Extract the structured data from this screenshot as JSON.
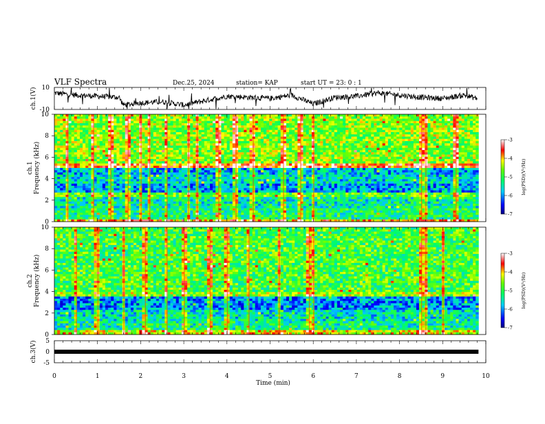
{
  "header": {
    "title": "VLF Spectra",
    "date": "Dec.25, 2024",
    "station": "station= KAP",
    "start": "start  UT =   23: 0  : 1"
  },
  "chart_data": [
    {
      "type": "line",
      "name": "ch1-waveform",
      "ylabel": "ch.1(V)",
      "ylim": [
        -10,
        10
      ],
      "ytick_labels": [
        "10",
        "-10"
      ],
      "xlim": [
        0,
        10
      ],
      "color": "#000000",
      "approx_x": [
        0.0,
        0.5,
        1.0,
        1.5,
        1.6,
        2.0,
        2.5,
        3.0,
        3.5,
        4.0,
        4.5,
        5.0,
        5.5,
        6.0,
        6.5,
        7.0,
        7.5,
        8.0,
        8.5,
        9.0,
        9.5,
        9.8
      ],
      "approx_y": [
        5,
        3,
        2,
        1,
        -6,
        -4,
        -3,
        -6,
        -2,
        2,
        1,
        0,
        3,
        -5,
        1,
        2,
        5,
        3,
        1,
        0,
        3,
        0
      ]
    },
    {
      "type": "heatmap",
      "name": "ch1-spectrogram",
      "ylabel": "ch.1\nFrequency  (kHz)",
      "xlim": [
        0,
        10
      ],
      "ylim": [
        0,
        10
      ],
      "y_ticks": [
        0,
        2,
        4,
        6,
        8,
        10
      ],
      "colorbar": {
        "label": "log(PSD)(V²/Hz)",
        "range": [
          -7,
          -3
        ],
        "ticks": [
          -3,
          -4,
          -5,
          -6,
          -7
        ]
      },
      "data_end_min": 9.83,
      "approx_band_levels": [
        {
          "f_range": [
            0.0,
            0.3
          ],
          "level": -3.9
        },
        {
          "f_range": [
            0.3,
            1.3
          ],
          "level": -5.2
        },
        {
          "f_range": [
            1.3,
            2.3
          ],
          "level": -5.4
        },
        {
          "f_range": [
            2.3,
            2.8
          ],
          "level": -4.8
        },
        {
          "f_range": [
            2.8,
            3.6
          ],
          "level": -5.9
        },
        {
          "f_range": [
            3.6,
            4.3
          ],
          "level": -5.6
        },
        {
          "f_range": [
            4.3,
            5.0
          ],
          "level": -5.8
        },
        {
          "f_range": [
            5.0,
            5.5
          ],
          "level": -3.6
        },
        {
          "f_range": [
            5.5,
            10.0
          ],
          "level": -4.6
        }
      ],
      "approx_vertical_bursts_min": [
        0.3,
        0.9,
        1.3,
        1.7,
        2.0,
        2.2,
        2.6,
        3.1,
        3.3,
        3.8,
        4.2,
        4.6,
        5.3,
        5.7,
        6.0,
        8.5,
        8.6,
        9.3
      ]
    },
    {
      "type": "heatmap",
      "name": "ch2-spectrogram",
      "ylabel": "ch.2\nFrequency  (kHz)",
      "xlim": [
        0,
        10
      ],
      "ylim": [
        0,
        10
      ],
      "y_ticks": [
        0,
        2,
        4,
        6,
        8,
        10
      ],
      "colorbar": {
        "label": "log(PSD)(V²/Hz)",
        "range": [
          -7,
          -3
        ],
        "ticks": [
          -3,
          -4,
          -5,
          -6,
          -7
        ]
      },
      "data_end_min": 9.83,
      "approx_band_levels": [
        {
          "f_range": [
            0.0,
            0.5
          ],
          "level": -4.2
        },
        {
          "f_range": [
            0.5,
            1.3
          ],
          "level": -5.3
        },
        {
          "f_range": [
            1.3,
            2.2
          ],
          "level": -5.5
        },
        {
          "f_range": [
            2.2,
            3.5
          ],
          "level": -6.0
        },
        {
          "f_range": [
            3.5,
            4.0
          ],
          "level": -4.5
        },
        {
          "f_range": [
            4.0,
            10.0
          ],
          "level": -4.9
        }
      ],
      "approx_vertical_bursts_min": [
        0.5,
        1.0,
        1.6,
        2.1,
        2.6,
        3.0,
        3.6,
        4.0,
        4.5,
        5.2,
        5.9,
        6.0,
        8.5,
        8.6,
        9.0
      ]
    },
    {
      "type": "line",
      "name": "ch3-signal",
      "ylabel": "ch.3(V)",
      "ylim": [
        -5,
        5
      ],
      "ytick_labels": [
        "5",
        "0",
        "-5"
      ],
      "xlim": [
        0,
        10
      ],
      "color": "#000000",
      "x": [
        0,
        9.83
      ],
      "y": [
        0,
        0
      ]
    }
  ],
  "xaxis": {
    "label": "Time  (min)",
    "range": [
      0,
      10
    ],
    "ticks": [
      "0",
      "1",
      "2",
      "3",
      "4",
      "5",
      "6",
      "7",
      "8",
      "9",
      "10"
    ]
  }
}
